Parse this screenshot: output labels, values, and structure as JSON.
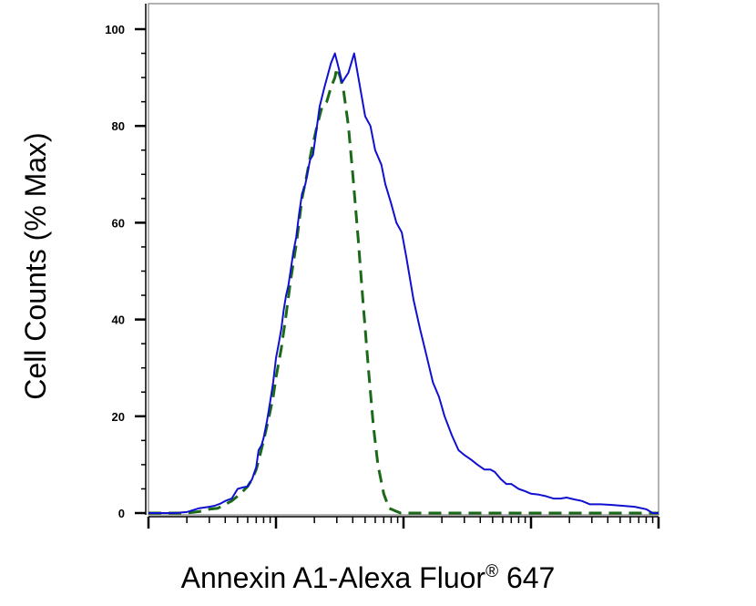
{
  "chart_data": {
    "type": "line",
    "title": "",
    "xlabel": "Annexin A1-Alexa Fluor",
    "xlabel_mark": "®",
    "xlabel_suffix": " 647",
    "ylabel": "Cell Counts (% Max)",
    "x_scale": "log",
    "xlim": [
      1,
      10000
    ],
    "ylim": [
      0,
      105
    ],
    "y_ticks": [
      0,
      20,
      40,
      60,
      80,
      100
    ],
    "x_tick_labels": [],
    "grid": false,
    "legend": "none",
    "series": [
      {
        "style": "solid",
        "color": "#1010d0",
        "x": [
          1,
          1.3,
          1.6,
          2,
          2.5,
          3,
          3.3,
          3.7,
          4,
          4.5,
          5,
          5.5,
          6,
          6.5,
          7,
          7.3,
          7.7,
          8,
          8.5,
          9,
          9.5,
          10,
          10.5,
          11,
          11.5,
          12,
          12.5,
          13,
          13.7,
          14.4,
          15.2,
          16,
          17,
          18.5,
          19.5,
          20.5,
          22,
          24,
          27,
          29,
          31,
          33,
          37,
          41,
          45,
          50,
          55,
          60,
          67,
          72,
          80,
          88,
          97,
          105,
          120,
          135,
          150,
          170,
          190,
          210,
          240,
          270,
          300,
          340,
          380,
          430,
          480,
          520,
          580,
          640,
          700,
          800,
          900,
          1000,
          1150,
          1300,
          1500,
          1700,
          1900,
          2200,
          2500,
          2900,
          3500,
          4200,
          5200,
          6500,
          8000,
          9000,
          10000
        ],
        "y": [
          0,
          0,
          0,
          0.2,
          1,
          1.3,
          1.5,
          2,
          2.5,
          3,
          5,
          5.3,
          5.5,
          7,
          9.5,
          13,
          14,
          15.5,
          19,
          23,
          27,
          32,
          35,
          38,
          42,
          45,
          47,
          50,
          54,
          57,
          62,
          66,
          68,
          73,
          74,
          78,
          84,
          88,
          93,
          95,
          92,
          89,
          91,
          95,
          89,
          82,
          80,
          75,
          72,
          68,
          64,
          60,
          58,
          53,
          44,
          38,
          33,
          27,
          24,
          20,
          16,
          13,
          12,
          11,
          10,
          9,
          9,
          8.5,
          7,
          6,
          6,
          5,
          4.5,
          4,
          3.8,
          3.5,
          3,
          3,
          3.2,
          2.8,
          2.5,
          1.8,
          1.8,
          1.7,
          1.5,
          1.3,
          0.8,
          0,
          0
        ]
      },
      {
        "style": "dashed",
        "color": "#1a6a1a",
        "x": [
          1,
          1.5,
          2,
          2.5,
          3,
          3.5,
          4,
          4.5,
          5,
          5.5,
          6,
          6.5,
          7,
          7.5,
          8,
          8.5,
          9,
          9.5,
          10,
          11,
          12,
          13,
          14.5,
          16,
          17.5,
          19,
          21,
          23,
          25,
          27,
          29,
          30,
          32,
          34,
          37,
          40,
          44,
          48,
          53,
          58,
          63,
          70,
          77,
          85,
          95,
          105,
          120,
          150,
          200,
          300,
          500,
          1000,
          3000,
          10000
        ],
        "y": [
          0,
          0,
          0,
          0.3,
          0.8,
          1,
          1.8,
          2.5,
          3.5,
          4.5,
          5.5,
          7,
          9,
          12,
          15,
          18,
          21,
          24,
          28,
          34,
          41,
          48,
          56,
          65,
          70,
          75,
          80,
          84,
          85,
          88,
          90,
          92,
          90,
          87,
          80,
          70,
          57,
          44,
          30,
          18,
          10,
          4,
          1,
          0.5,
          0,
          0,
          0,
          0,
          0,
          0,
          0,
          0,
          0,
          0
        ]
      }
    ]
  }
}
